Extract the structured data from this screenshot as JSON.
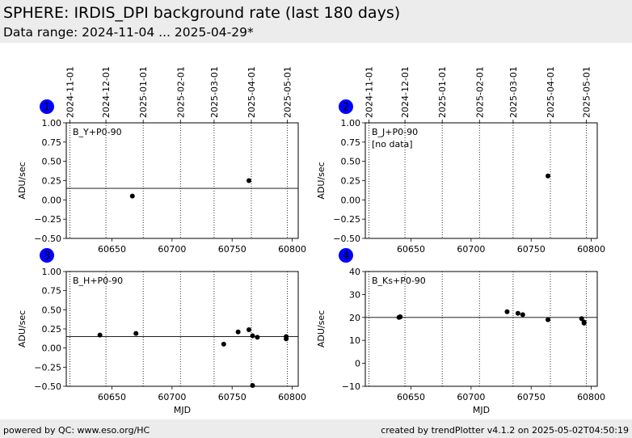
{
  "header": {
    "title": "SPHERE: IRDIS_DPI background rate (last 180 days)",
    "subtitle": "Data range: 2024-11-04 ... 2025-04-29*"
  },
  "footer": {
    "left": "powered by QC: www.eso.org/HC",
    "right": "created by trendPlotter v4.1.2 on 2025-05-02T04:50:19"
  },
  "colors": {
    "badge": "#0000ff",
    "points": "#000000",
    "no_data": "#ff0000",
    "header_bg": "#ececec"
  },
  "chart_data": [
    {
      "type": "scatter",
      "badge": "1",
      "label": "B_Y+P0-90",
      "ylabel": "ADU/sec",
      "xlabel": "",
      "xlim": [
        60612,
        60805
      ],
      "ylim": [
        -0.5,
        1.0
      ],
      "xticks": [
        60650,
        60700,
        60750,
        60800
      ],
      "yticks": [
        -0.5,
        -0.25,
        0.0,
        0.25,
        0.5,
        0.75,
        1.0
      ],
      "ytick_labels": [
        "−0.50",
        "−0.25",
        "0.00",
        "0.25",
        "0.50",
        "0.75",
        "1.00"
      ],
      "date_ticks": [
        {
          "label": "2024-11-01",
          "mjd": 60615
        },
        {
          "label": "2024-12-01",
          "mjd": 60645
        },
        {
          "label": "2025-01-01",
          "mjd": 60676
        },
        {
          "label": "2025-02-01",
          "mjd": 60707
        },
        {
          "label": "2025-03-01",
          "mjd": 60735
        },
        {
          "label": "2025-04-01",
          "mjd": 60766
        },
        {
          "label": "2025-05-01",
          "mjd": 60796
        }
      ],
      "reference_line": 0.15,
      "no_data": "",
      "points": [
        {
          "x": 60667,
          "y": 0.05
        },
        {
          "x": 60764,
          "y": 0.25
        }
      ]
    },
    {
      "type": "scatter",
      "badge": "2",
      "label": "B_J+P0-90",
      "ylabel": "ADU/sec",
      "xlabel": "",
      "xlim": [
        60612,
        60805
      ],
      "ylim": [
        -0.5,
        1.0
      ],
      "xticks": [
        60650,
        60700,
        60750,
        60800
      ],
      "yticks": [
        -0.5,
        -0.25,
        0.0,
        0.25,
        0.5,
        0.75,
        1.0
      ],
      "ytick_labels": [
        "−0.50",
        "−0.25",
        "0.00",
        "0.25",
        "0.50",
        "0.75",
        "1.00"
      ],
      "date_ticks": [
        {
          "label": "2024-11-01",
          "mjd": 60615
        },
        {
          "label": "2024-12-01",
          "mjd": 60645
        },
        {
          "label": "2025-01-01",
          "mjd": 60676
        },
        {
          "label": "2025-02-01",
          "mjd": 60707
        },
        {
          "label": "2025-03-01",
          "mjd": 60735
        },
        {
          "label": "2025-04-01",
          "mjd": 60766
        },
        {
          "label": "2025-05-01",
          "mjd": 60796
        }
      ],
      "reference_line": null,
      "no_data": "[no data]",
      "points": [
        {
          "x": 60764,
          "y": 0.31
        }
      ]
    },
    {
      "type": "scatter",
      "badge": "3",
      "label": "B_H+P0-90",
      "ylabel": "ADU/sec",
      "xlabel": "MJD",
      "xlim": [
        60612,
        60805
      ],
      "ylim": [
        -0.5,
        1.0
      ],
      "xticks": [
        60650,
        60700,
        60750,
        60800
      ],
      "yticks": [
        -0.5,
        -0.25,
        0.0,
        0.25,
        0.5,
        0.75,
        1.0
      ],
      "ytick_labels": [
        "−0.50",
        "−0.25",
        "0.00",
        "0.25",
        "0.50",
        "0.75",
        "1.00"
      ],
      "date_ticks": [
        {
          "label": "",
          "mjd": 60615
        },
        {
          "label": "",
          "mjd": 60645
        },
        {
          "label": "",
          "mjd": 60676
        },
        {
          "label": "",
          "mjd": 60707
        },
        {
          "label": "",
          "mjd": 60735
        },
        {
          "label": "",
          "mjd": 60766
        },
        {
          "label": "",
          "mjd": 60796
        }
      ],
      "reference_line": 0.15,
      "no_data": "",
      "points": [
        {
          "x": 60640,
          "y": 0.17
        },
        {
          "x": 60670,
          "y": 0.19
        },
        {
          "x": 60743,
          "y": 0.05
        },
        {
          "x": 60755,
          "y": 0.21
        },
        {
          "x": 60764,
          "y": 0.24
        },
        {
          "x": 60767,
          "y": 0.16
        },
        {
          "x": 60767,
          "y": -0.49
        },
        {
          "x": 60771,
          "y": 0.14
        },
        {
          "x": 60795,
          "y": 0.15
        },
        {
          "x": 60795,
          "y": 0.12
        }
      ]
    },
    {
      "type": "scatter",
      "badge": "4",
      "label": "B_Ks+P0-90",
      "ylabel": "ADU/sec",
      "xlabel": "MJD",
      "xlim": [
        60612,
        60805
      ],
      "ylim": [
        -10,
        40
      ],
      "xticks": [
        60650,
        60700,
        60750,
        60800
      ],
      "yticks": [
        -10,
        0,
        10,
        20,
        30,
        40
      ],
      "ytick_labels": [
        "−10",
        "0",
        "10",
        "20",
        "30",
        "40"
      ],
      "date_ticks": [
        {
          "label": "",
          "mjd": 60615
        },
        {
          "label": "",
          "mjd": 60645
        },
        {
          "label": "",
          "mjd": 60676
        },
        {
          "label": "",
          "mjd": 60707
        },
        {
          "label": "",
          "mjd": 60735
        },
        {
          "label": "",
          "mjd": 60766
        },
        {
          "label": "",
          "mjd": 60796
        }
      ],
      "reference_line": 20,
      "no_data": "",
      "points": [
        {
          "x": 60640,
          "y": 20.0
        },
        {
          "x": 60641,
          "y": 20.2
        },
        {
          "x": 60641,
          "y": 20.3
        },
        {
          "x": 60730,
          "y": 22.5
        },
        {
          "x": 60739,
          "y": 21.8
        },
        {
          "x": 60743,
          "y": 21.2
        },
        {
          "x": 60764,
          "y": 19.0
        },
        {
          "x": 60792,
          "y": 19.5
        },
        {
          "x": 60794,
          "y": 17.5
        },
        {
          "x": 60794,
          "y": 18.0
        }
      ]
    }
  ]
}
